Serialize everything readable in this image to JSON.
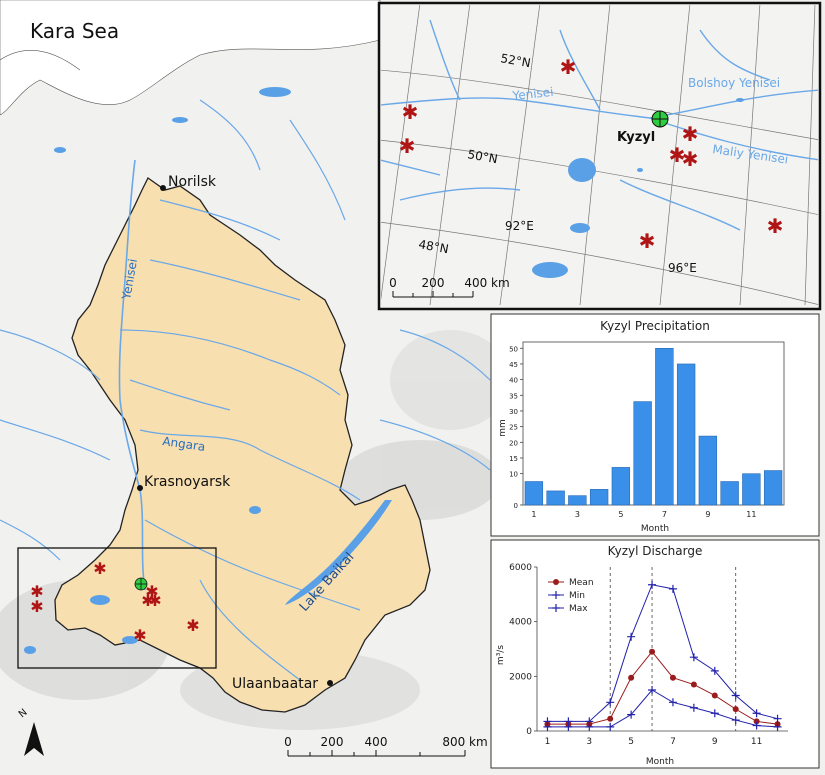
{
  "main_map": {
    "sea_label": "Kara Sea",
    "cities": [
      {
        "name": "Norilsk"
      },
      {
        "name": "Krasnoyarsk"
      },
      {
        "name": "Ulaanbaatar"
      }
    ],
    "rivers": {
      "yenisei": "Yenisei",
      "angara": "Angara"
    },
    "lake": "Lake Baikal",
    "scale": {
      "ticks": [
        "0",
        "200",
        "400",
        "800 km"
      ]
    },
    "north_label": "N",
    "colors": {
      "basin": "#f7dfb0",
      "water": "#5aa0e6",
      "station": "#b01515",
      "kyzyl": "#2ecc40"
    }
  },
  "inset_map": {
    "city": "Kyzyl",
    "rivers": {
      "yenisei": "Yenisei",
      "bolshoy": "Bolshoy Yenisei",
      "maliy": "Maliy Yenisei"
    },
    "graticule": {
      "lat52": "52°N",
      "lat50": "50°N",
      "lat48": "48°N",
      "lon92": "92°E",
      "lon96": "96°E"
    },
    "scale": {
      "ticks": [
        "0",
        "200",
        "400 km"
      ]
    }
  },
  "chart_data": [
    {
      "type": "bar",
      "title": "Kyzyl Precipitation",
      "xlabel": "Month",
      "ylabel": "mm",
      "categories": [
        1,
        2,
        3,
        4,
        5,
        6,
        7,
        8,
        9,
        10,
        11,
        12
      ],
      "xticks": [
        "1",
        "3",
        "5",
        "7",
        "9",
        "11"
      ],
      "yticks": [
        "0",
        "10",
        "15",
        "20",
        "25",
        "30",
        "35",
        "40",
        "45",
        "50"
      ],
      "values": [
        7.5,
        4.5,
        3,
        5,
        12,
        33,
        50,
        45,
        22,
        7.5,
        10,
        11
      ],
      "ylim": [
        0,
        52
      ],
      "color": "#3a8fe8"
    },
    {
      "type": "line",
      "title": "Kyzyl Discharge",
      "xlabel": "Month",
      "ylabel": "m³/s",
      "x": [
        1,
        2,
        3,
        4,
        5,
        6,
        7,
        8,
        9,
        10,
        11,
        12
      ],
      "xticks": [
        "1",
        "3",
        "5",
        "7",
        "9",
        "11"
      ],
      "yticks": [
        "0",
        "2000",
        "4000",
        "6000"
      ],
      "ylim": [
        0,
        6000
      ],
      "vlines": [
        4,
        6,
        10
      ],
      "legend": "top-left",
      "series": [
        {
          "name": "Mean",
          "color": "#9b1c1c",
          "marker": "circle",
          "values": [
            250,
            250,
            250,
            450,
            1950,
            2900,
            1950,
            1700,
            1300,
            800,
            350,
            250
          ]
        },
        {
          "name": "Min",
          "color": "#2222aa",
          "marker": "plus",
          "values": [
            150,
            150,
            150,
            150,
            600,
            1500,
            1050,
            850,
            650,
            400,
            200,
            150
          ]
        },
        {
          "name": "Max",
          "color": "#2222aa",
          "marker": "plus",
          "values": [
            350,
            350,
            350,
            1050,
            3450,
            5350,
            5200,
            2700,
            2200,
            1300,
            650,
            450
          ]
        }
      ]
    }
  ]
}
